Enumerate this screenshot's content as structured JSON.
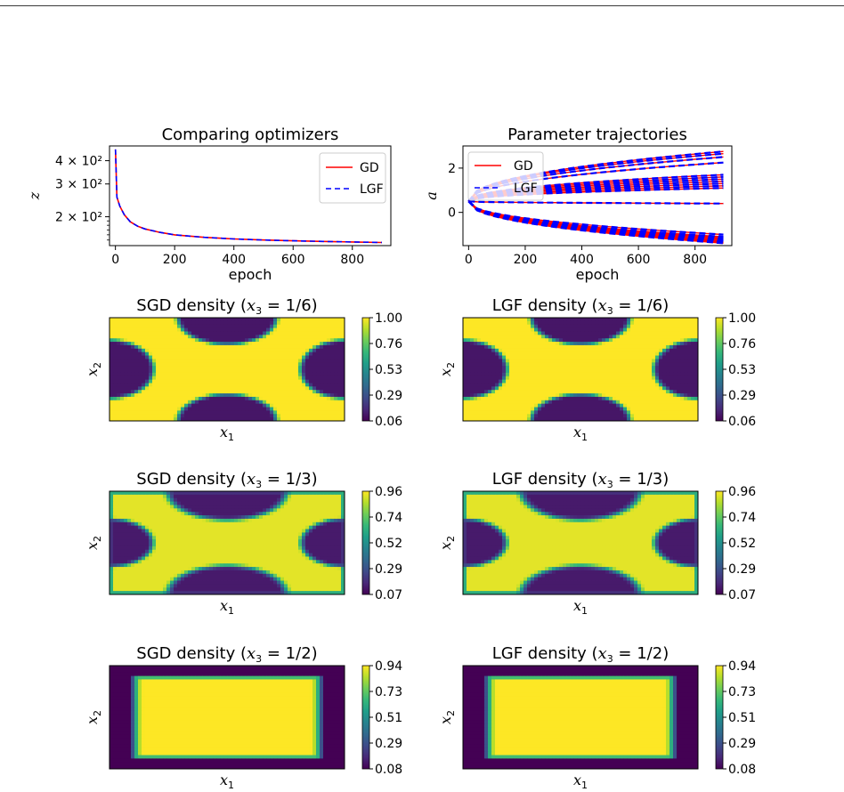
{
  "chart_data": [
    {
      "id": "loss",
      "type": "line",
      "title": "Comparing optimizers",
      "xlabel": "epoch",
      "ylabel": "z",
      "yscale": "log",
      "xlim": [
        -20,
        930
      ],
      "ylim": [
        140,
        480
      ],
      "xticks": [
        0,
        200,
        400,
        600,
        800
      ],
      "yticks": [
        {
          "value": 200,
          "label": "2 × 10²"
        },
        {
          "value": 300,
          "label": "3 × 10²"
        },
        {
          "value": 400,
          "label": "4 × 10²"
        }
      ],
      "legend": "top-right",
      "x": [
        0,
        5,
        15,
        30,
        50,
        75,
        100,
        150,
        200,
        300,
        400,
        500,
        600,
        700,
        800,
        900
      ],
      "series": [
        {
          "name": "GD",
          "color": "#ff0000",
          "style": "solid",
          "values": [
            460,
            255,
            228,
            205,
            188,
            178,
            172,
            165,
            160,
            155,
            152,
            150,
            148.5,
            147.5,
            146.5,
            145.5
          ]
        },
        {
          "name": "LGF",
          "color": "#0000ff",
          "style": "dashed",
          "values": [
            460,
            255,
            228,
            205,
            188,
            178,
            172,
            165,
            160,
            155,
            152,
            150,
            148.5,
            147.5,
            146.5,
            145.5
          ]
        }
      ]
    },
    {
      "id": "traj",
      "type": "line",
      "title": "Parameter trajectories",
      "xlabel": "epoch",
      "ylabel": "a",
      "xlim": [
        -20,
        930
      ],
      "ylim": [
        -1.5,
        3.0
      ],
      "xticks": [
        0,
        200,
        400,
        600,
        800
      ],
      "yticks": [
        0,
        2
      ],
      "legend": "top-left",
      "series": [
        {
          "name": "GD",
          "color": "#ff0000",
          "style": "solid"
        },
        {
          "name": "LGF",
          "color": "#0000ff",
          "style": "dashed"
        }
      ],
      "x": [
        0,
        900
      ],
      "start_value": 0.5,
      "final_values": [
        2.75,
        2.65,
        2.5,
        2.25,
        1.7,
        1.6,
        1.5,
        1.4,
        1.3,
        1.2,
        1.1,
        0.4,
        -1.0,
        -1.1,
        -1.15,
        -1.2,
        -1.25,
        -1.3,
        -1.33,
        -1.36,
        -1.39
      ]
    },
    {
      "id": "sgd16",
      "type": "heatmap",
      "title_prefix": "SGD density (",
      "title_var": "x",
      "title_sub": "3",
      "title_suffix": " = 1/6)",
      "xlabel": "x",
      "xsub": "1",
      "ylabel": "x",
      "ysub": "2",
      "pattern": "x",
      "colorbar": [
        "1.00",
        "0.76",
        "0.53",
        "0.29",
        "0.06"
      ]
    },
    {
      "id": "lgf16",
      "type": "heatmap",
      "title_prefix": "LGF density (",
      "title_var": "x",
      "title_sub": "3",
      "title_suffix": " = 1/6)",
      "xlabel": "x",
      "xsub": "1",
      "ylabel": "x",
      "ysub": "2",
      "pattern": "x",
      "colorbar": [
        "1.00",
        "0.76",
        "0.53",
        "0.29",
        "0.06"
      ]
    },
    {
      "id": "sgd13",
      "type": "heatmap",
      "title_prefix": "SGD density (",
      "title_var": "x",
      "title_sub": "3",
      "title_suffix": " = 1/3)",
      "xlabel": "x",
      "xsub": "1",
      "ylabel": "x",
      "ysub": "2",
      "pattern": "x-thin",
      "colorbar": [
        "0.96",
        "0.74",
        "0.52",
        "0.29",
        "0.07"
      ]
    },
    {
      "id": "lgf13",
      "type": "heatmap",
      "title_prefix": "LGF density (",
      "title_var": "x",
      "title_sub": "3",
      "title_suffix": " = 1/3)",
      "xlabel": "x",
      "xsub": "1",
      "ylabel": "x",
      "ysub": "2",
      "pattern": "x-thin",
      "colorbar": [
        "0.96",
        "0.74",
        "0.52",
        "0.29",
        "0.07"
      ]
    },
    {
      "id": "sgd12",
      "type": "heatmap",
      "title_prefix": "SGD density (",
      "title_var": "x",
      "title_sub": "3",
      "title_suffix": " = 1/2)",
      "xlabel": "x",
      "xsub": "1",
      "ylabel": "x",
      "ysub": "2",
      "pattern": "rect",
      "colorbar": [
        "0.94",
        "0.73",
        "0.51",
        "0.29",
        "0.08"
      ]
    },
    {
      "id": "lgf12",
      "type": "heatmap",
      "title_prefix": "LGF density (",
      "title_var": "x",
      "title_sub": "3",
      "title_suffix": " = 1/2)",
      "xlabel": "x",
      "xsub": "1",
      "ylabel": "x",
      "ysub": "2",
      "pattern": "rect",
      "colorbar": [
        "0.94",
        "0.73",
        "0.51",
        "0.29",
        "0.08"
      ]
    }
  ]
}
